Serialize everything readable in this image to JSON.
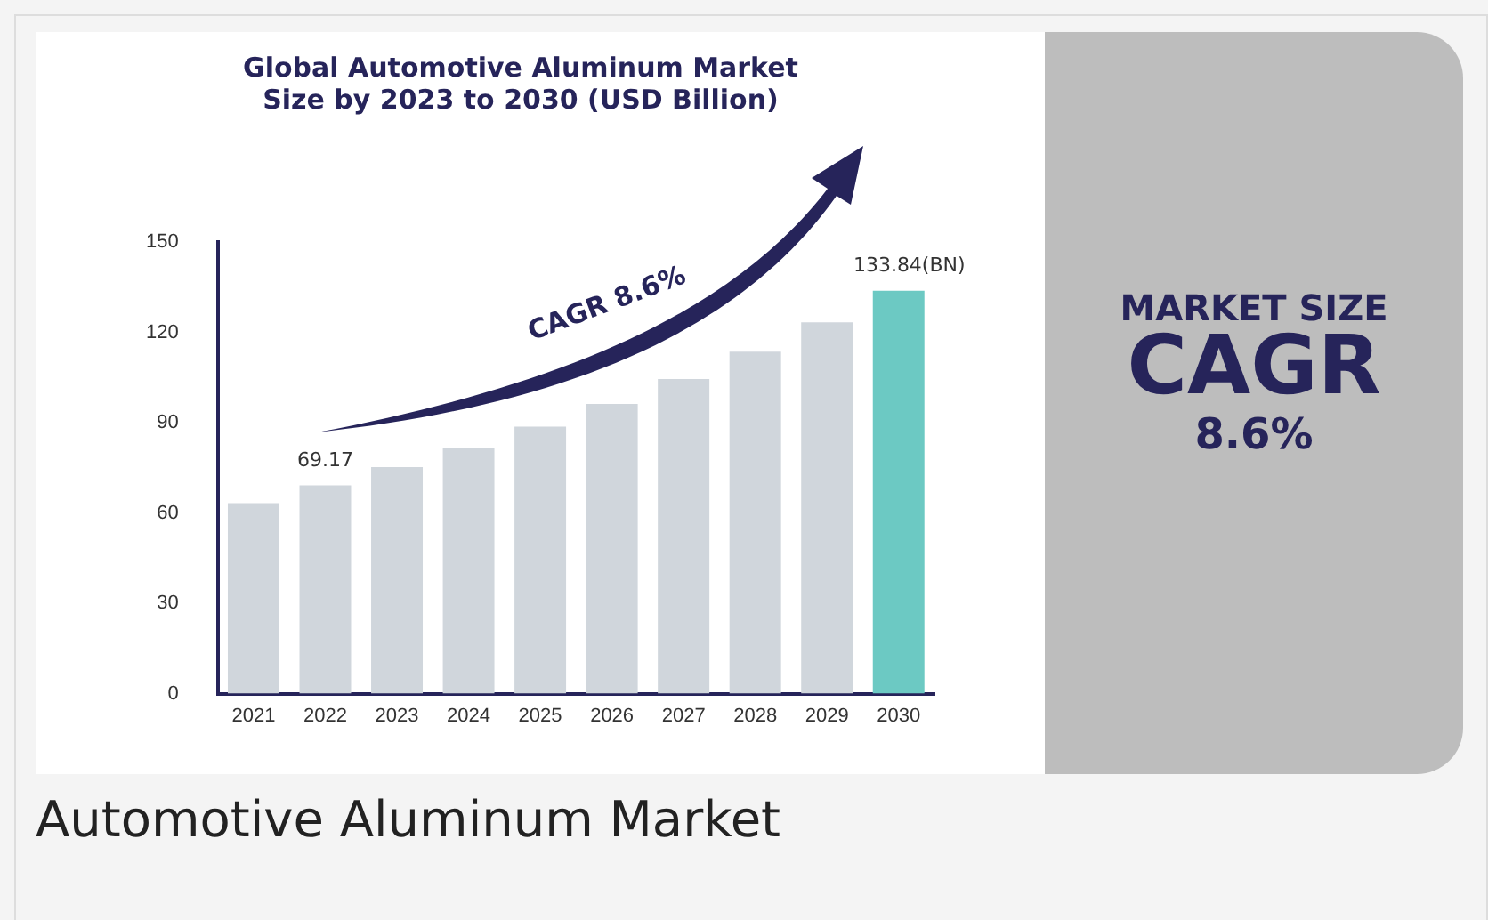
{
  "chart_data": {
    "type": "bar",
    "title": [
      "Global Automotive Aluminum Market",
      "Size by 2023 to 2030 (USD Billion)"
    ],
    "categories": [
      "2021",
      "2022",
      "2023",
      "2024",
      "2025",
      "2026",
      "2027",
      "2028",
      "2029",
      "2030"
    ],
    "values": [
      63.3,
      69.17,
      75.2,
      81.7,
      88.7,
      96.2,
      104.5,
      113.6,
      123.3,
      133.84
    ],
    "colors": [
      "#d0d6dc",
      "#d0d6dc",
      "#d0d6dc",
      "#d0d6dc",
      "#d0d6dc",
      "#d0d6dc",
      "#d0d6dc",
      "#d0d6dc",
      "#d0d6dc",
      "#6cc9c3"
    ],
    "value_labels": [
      null,
      "69.17",
      null,
      null,
      null,
      null,
      null,
      null,
      null,
      "133.84(BN)"
    ],
    "ylim": [
      0,
      150
    ],
    "yticks": [
      0,
      30,
      60,
      90,
      120,
      150
    ],
    "grid": false,
    "legend": false,
    "annotations": [
      "CAGR 8.6%",
      "MARKET SIZE",
      "CAGR",
      "8.6%",
      "Automotive Aluminum Market"
    ]
  }
}
